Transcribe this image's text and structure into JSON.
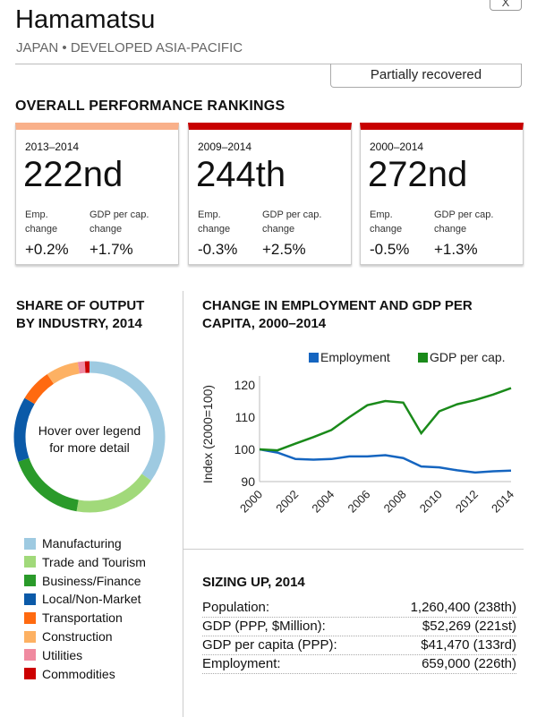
{
  "header": {
    "title": "Hamamatsu",
    "subtitle": "JAPAN • DEVELOPED ASIA-PACIFIC",
    "close_label": "X",
    "status": "Partially recovered"
  },
  "rankings": {
    "heading": "OVERALL PERFORMANCE RANKINGS",
    "emp_label1": "Emp.",
    "emp_label2": "change",
    "gdp_label1": "GDP per cap.",
    "gdp_label2": "change",
    "cards": [
      {
        "period": "2013–2014",
        "rank": "222nd",
        "emp": "+0.2%",
        "gdp": "+1.7%",
        "color": "#f9b08a"
      },
      {
        "period": "2009–2014",
        "rank": "244th",
        "emp": "-0.3%",
        "gdp": "+2.5%",
        "color": "#c80000"
      },
      {
        "period": "2000–2014",
        "rank": "272nd",
        "emp": "-0.5%",
        "gdp": "+1.3%",
        "color": "#c80000"
      }
    ]
  },
  "share": {
    "heading1": "SHARE OF OUTPUT",
    "heading2": "BY INDUSTRY, 2014",
    "center_text1": "Hover over legend",
    "center_text2": "for more detail"
  },
  "chart_data": [
    {
      "type": "pie",
      "donut": true,
      "categories": [
        "Manufacturing",
        "Trade and Tourism",
        "Business/Finance",
        "Local/Non-Market",
        "Transportation",
        "Construction",
        "Utilities",
        "Commodities"
      ],
      "values": [
        35,
        18,
        17,
        14,
        7,
        7,
        1.5,
        1
      ],
      "colors": [
        "#9ecae1",
        "#a1d97a",
        "#2a9a2a",
        "#0b5aa8",
        "#ff6a10",
        "#fdb163",
        "#f08aa0",
        "#cc0000"
      ]
    },
    {
      "type": "line",
      "title": "CHANGE IN EMPLOYMENT AND GDP PER CAPITA, 2000–2014",
      "title1": "CHANGE IN EMPLOYMENT AND GDP PER",
      "title2": "CAPITA, 2000–2014",
      "ylabel": "Index (2000=100)",
      "ylim": [
        90,
        120
      ],
      "yticks": [
        90,
        100,
        110,
        120
      ],
      "xticks": [
        "2000",
        "2002",
        "2004",
        "2006",
        "2008",
        "2010",
        "2012",
        "2014"
      ],
      "x": [
        2000,
        2001,
        2002,
        2003,
        2004,
        2005,
        2006,
        2007,
        2008,
        2009,
        2010,
        2011,
        2012,
        2013,
        2014
      ],
      "series": [
        {
          "name": "Employment",
          "color": "#1565c0",
          "values": [
            100,
            99,
            97,
            96.8,
            97,
            97.8,
            97.8,
            98.2,
            97.3,
            94.7,
            94.4,
            93.5,
            92.8,
            93.2,
            93.4
          ]
        },
        {
          "name": "GDP per cap.",
          "color": "#1a8a1a",
          "values": [
            100,
            99.7,
            101.8,
            103.8,
            106,
            110,
            113.7,
            115,
            114.5,
            105,
            111.8,
            114,
            115.3,
            117,
            119
          ]
        }
      ],
      "legend": "top-right",
      "grid": false
    }
  ],
  "sizing": {
    "heading": "SIZING UP, 2014",
    "rows": [
      {
        "label": "Population:",
        "value": "1,260,400 (238th)"
      },
      {
        "label": "GDP (PPP, $Million):",
        "value": "$52,269 (221st)"
      },
      {
        "label": "GDP per capita (PPP):",
        "value": "$41,470 (133rd)"
      },
      {
        "label": "Employment:",
        "value": "659,000 (226th)"
      }
    ]
  }
}
